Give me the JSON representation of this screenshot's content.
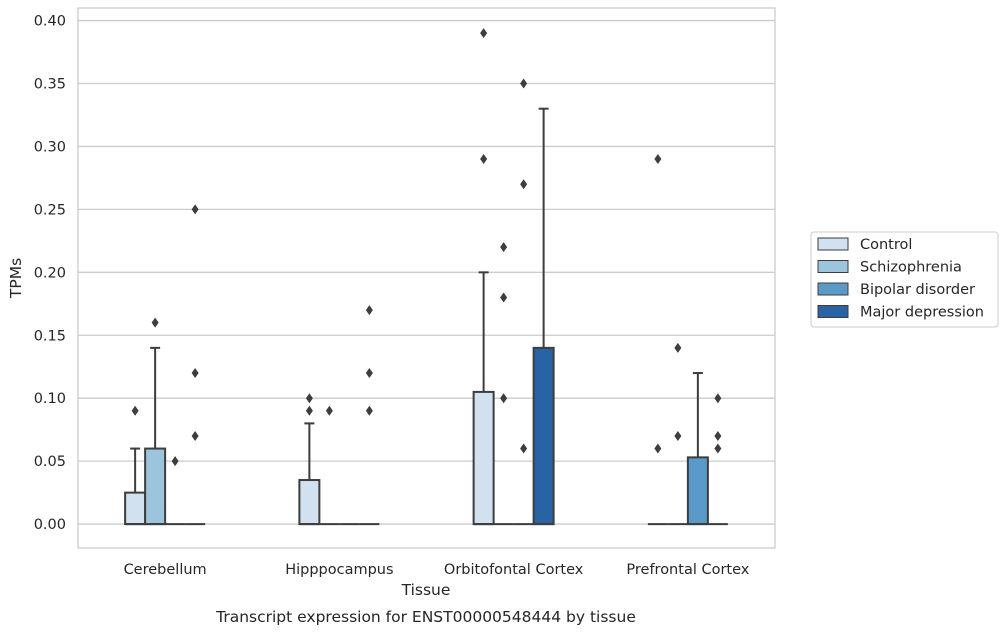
{
  "chart_data": {
    "type": "boxplot",
    "title": "",
    "caption": "Transcript expression for ENST00000548444 by tissue",
    "xlabel": "Tissue",
    "ylabel": "TPMs",
    "ylim": [
      -0.019,
      0.41
    ],
    "yticks": [
      "0.00",
      "0.05",
      "0.10",
      "0.15",
      "0.20",
      "0.25",
      "0.30",
      "0.35",
      "0.40"
    ],
    "ytick_values": [
      0,
      0.05,
      0.1,
      0.15,
      0.2,
      0.25,
      0.3,
      0.35,
      0.4
    ],
    "grid": true,
    "legend_position": "right, outside plot",
    "categories": [
      "Cerebellum",
      "Hipppocampus",
      "Orbitofontal Cortex",
      "Prefrontal Cortex"
    ],
    "series": [
      {
        "name": "Control",
        "color": "#d1e1f0",
        "boxes": [
          {
            "q1": 0,
            "median": 0,
            "q3": 0.025,
            "whisker_low": 0,
            "whisker_high": 0.06,
            "outliers": [
              0.09
            ]
          },
          {
            "q1": 0,
            "median": 0,
            "q3": 0.035,
            "whisker_low": 0,
            "whisker_high": 0.08,
            "outliers": [
              0.09,
              0.1
            ]
          },
          {
            "q1": 0,
            "median": 0,
            "q3": 0.105,
            "whisker_low": 0,
            "whisker_high": 0.2,
            "outliers": [
              0.29,
              0.39
            ]
          },
          {
            "q1": 0,
            "median": 0,
            "q3": 0,
            "whisker_low": 0,
            "whisker_high": 0,
            "outliers": [
              0.06,
              0.29
            ]
          }
        ]
      },
      {
        "name": "Schizophrenia",
        "color": "#9cc4dc",
        "boxes": [
          {
            "q1": 0,
            "median": 0,
            "q3": 0.06,
            "whisker_low": 0,
            "whisker_high": 0.14,
            "outliers": [
              0.16
            ]
          },
          {
            "q1": 0,
            "median": 0,
            "q3": 0,
            "whisker_low": 0,
            "whisker_high": 0,
            "outliers": [
              0.09
            ]
          },
          {
            "q1": 0,
            "median": 0,
            "q3": 0,
            "whisker_low": 0,
            "whisker_high": 0,
            "outliers": [
              0.1,
              0.18,
              0.22
            ]
          },
          {
            "q1": 0,
            "median": 0,
            "q3": 0,
            "whisker_low": 0,
            "whisker_high": 0,
            "outliers": [
              0.07,
              0.14
            ]
          }
        ]
      },
      {
        "name": "Bipolar disorder",
        "color": "#5a9ac8",
        "boxes": [
          {
            "q1": 0,
            "median": 0,
            "q3": 0,
            "whisker_low": 0,
            "whisker_high": 0,
            "outliers": [
              0.05
            ]
          },
          {
            "q1": 0,
            "median": 0,
            "q3": 0,
            "whisker_low": 0,
            "whisker_high": 0,
            "outliers": []
          },
          {
            "q1": 0,
            "median": 0,
            "q3": 0,
            "whisker_low": 0,
            "whisker_high": 0,
            "outliers": [
              0.06,
              0.27,
              0.35
            ]
          },
          {
            "q1": 0,
            "median": 0,
            "q3": 0.053,
            "whisker_low": 0,
            "whisker_high": 0.12,
            "outliers": []
          }
        ]
      },
      {
        "name": "Major depression",
        "color": "#2864a4",
        "boxes": [
          {
            "q1": 0,
            "median": 0,
            "q3": 0,
            "whisker_low": 0,
            "whisker_high": 0,
            "outliers": [
              0.07,
              0.12,
              0.25
            ]
          },
          {
            "q1": 0,
            "median": 0,
            "q3": 0,
            "whisker_low": 0,
            "whisker_high": 0,
            "outliers": [
              0.09,
              0.12,
              0.17
            ]
          },
          {
            "q1": 0,
            "median": 0,
            "q3": 0.14,
            "whisker_low": 0,
            "whisker_high": 0.33,
            "outliers": []
          },
          {
            "q1": 0,
            "median": 0,
            "q3": 0,
            "whisker_low": 0,
            "whisker_high": 0,
            "outliers": [
              0.06,
              0.07,
              0.1
            ]
          }
        ]
      }
    ]
  }
}
